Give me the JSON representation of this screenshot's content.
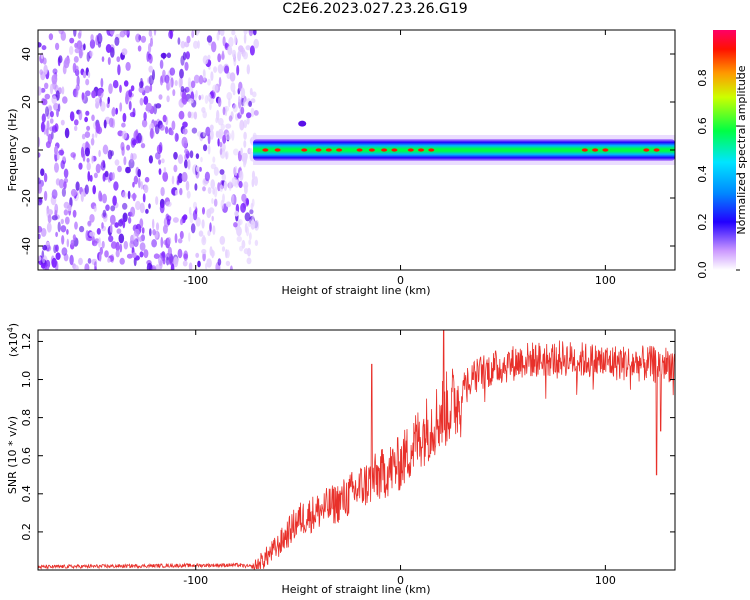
{
  "title": "C2E6.2023.027.23.26.G19",
  "colors": {
    "line": "#e8302a",
    "frame": "#000000"
  },
  "chart_data": [
    {
      "type": "heatmap",
      "xlabel": "Height of straight line (km)",
      "ylabel": "Frequency (Hz)",
      "xlim": [
        -177,
        134
      ],
      "ylim": [
        -50,
        50
      ],
      "xticks": [
        -100,
        0,
        100
      ],
      "yticks": [
        -40,
        -20,
        0,
        20,
        40
      ],
      "colorbar": {
        "label": "Normalized spectral amplitude",
        "range": [
          0.0,
          1.0
        ],
        "ticks": [
          "0.0",
          "0.2",
          "0.4",
          "0.6",
          "0.8"
        ]
      },
      "noise_region_x": [
        -177,
        -72
      ],
      "signal_band": {
        "x": [
          -72,
          134
        ],
        "center_hz": 0,
        "halfwidth_hz": 5
      }
    },
    {
      "type": "line",
      "xlabel": "Height of straight line (km)",
      "ylabel": "SNR (10 * v/v)",
      "y_multiplier": "(x10",
      "y_exponent": "4",
      "xlim": [
        -177,
        134
      ],
      "ylim": [
        0,
        1.26
      ],
      "xticks": [
        -100,
        0,
        100
      ],
      "yticks": [
        "0.2",
        "0.4",
        "0.6",
        "0.8",
        "1.0",
        "1.2"
      ],
      "envelope_points": [
        [
          -177,
          0.02
        ],
        [
          -80,
          0.03
        ],
        [
          -72,
          0.02
        ],
        [
          -60,
          0.15
        ],
        [
          -50,
          0.3
        ],
        [
          -40,
          0.35
        ],
        [
          -30,
          0.4
        ],
        [
          -20,
          0.48
        ],
        [
          -10,
          0.55
        ],
        [
          0,
          0.62
        ],
        [
          10,
          0.78
        ],
        [
          20,
          0.9
        ],
        [
          30,
          1.0
        ],
        [
          40,
          1.08
        ],
        [
          60,
          1.14
        ],
        [
          80,
          1.15
        ],
        [
          100,
          1.13
        ],
        [
          120,
          1.12
        ],
        [
          134,
          1.12
        ]
      ]
    }
  ]
}
